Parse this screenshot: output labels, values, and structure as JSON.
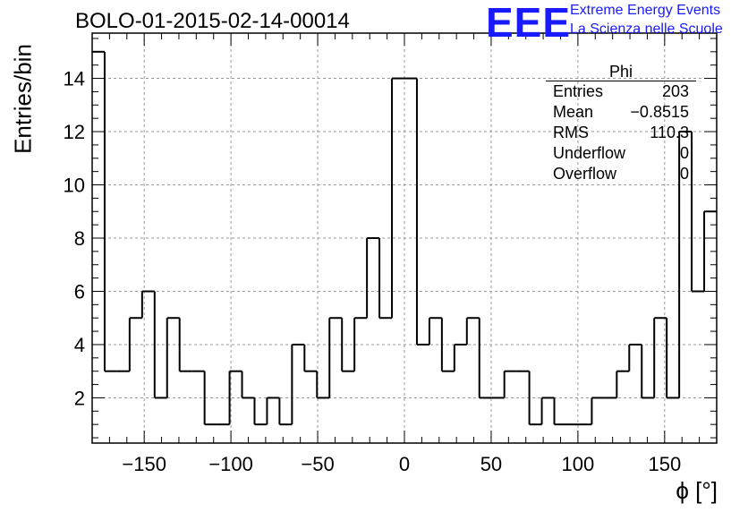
{
  "title": "BOLO-01-2015-02-14-00014",
  "logo": {
    "mark": "EEE",
    "line1": "Extreme Energy Events",
    "line2": "La Scienza nelle Scuole",
    "color": "#1a1aff"
  },
  "stats_box": {
    "title": "Phi",
    "rows": [
      {
        "label": "Entries",
        "value": "203"
      },
      {
        "label": "Mean",
        "value": "−0.8515"
      },
      {
        "label": "RMS",
        "value": "110.3"
      },
      {
        "label": "Underflow",
        "value": "0"
      },
      {
        "label": "Overflow",
        "value": "0"
      }
    ]
  },
  "chart_data": {
    "type": "histogram",
    "title": "BOLO-01-2015-02-14-00014",
    "xlabel": "ϕ [°]",
    "ylabel": "Entries/bin",
    "xlim": [
      -180,
      180
    ],
    "ylim": [
      0.3,
      15.7
    ],
    "bin_width": 7.2,
    "grid": true,
    "x_ticks": [
      -150,
      -100,
      -50,
      0,
      50,
      100,
      150
    ],
    "x_tick_labels": [
      "−150",
      "−100",
      "−50",
      "0",
      "50",
      "100",
      "150"
    ],
    "y_ticks": [
      2,
      4,
      6,
      8,
      10,
      12,
      14
    ],
    "y_tick_labels": [
      "2",
      "4",
      "6",
      "8",
      "10",
      "12",
      "14"
    ],
    "values": [
      15,
      3,
      3,
      5,
      6,
      2,
      5,
      3,
      3,
      1,
      1,
      3,
      2,
      1,
      2,
      1,
      4,
      3,
      2,
      5,
      3,
      5,
      8,
      5,
      14,
      14,
      4,
      5,
      3,
      4,
      5,
      2,
      2,
      3,
      3,
      1,
      2,
      1,
      1,
      1,
      2,
      2,
      3,
      4,
      2,
      5,
      2,
      12,
      6,
      9
    ]
  }
}
